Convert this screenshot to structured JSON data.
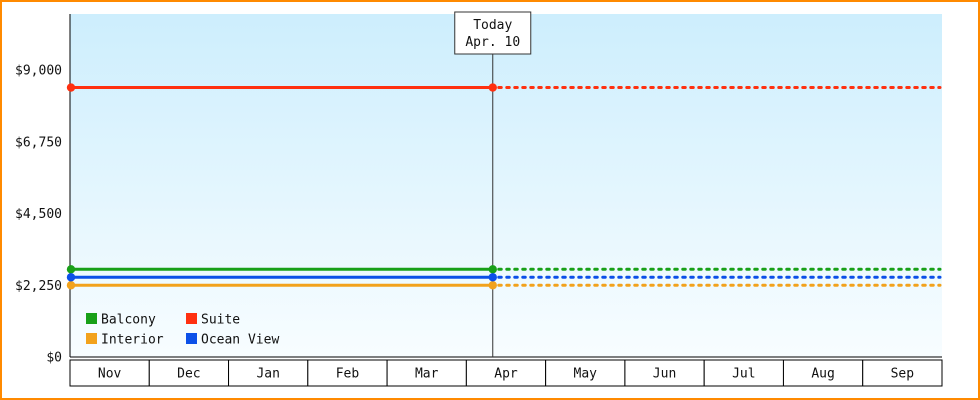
{
  "page": {
    "border_color": "#ff8a00"
  },
  "chart_data": {
    "type": "line",
    "description": "Cabin price trend by category with solid history and dotted forecast after today marker",
    "x_categories": [
      "Nov",
      "Dec",
      "Jan",
      "Feb",
      "Mar",
      "Apr",
      "May",
      "Jun",
      "Jul",
      "Aug",
      "Sep"
    ],
    "y_ticks": [
      {
        "value": 0,
        "label": "$0"
      },
      {
        "value": 2250,
        "label": "$2,250"
      },
      {
        "value": 4500,
        "label": "$4,500"
      },
      {
        "value": 6750,
        "label": "$6,750"
      },
      {
        "value": 9000,
        "label": "$9,000"
      }
    ],
    "ylim": [
      0,
      10750
    ],
    "grid": false,
    "today_marker": {
      "line1": "Today",
      "line2": "Apr. 10",
      "month_index": 5,
      "day_fraction": 0.333
    },
    "series": [
      {
        "name": "Balcony",
        "color": "#18a018",
        "value": 2750
      },
      {
        "name": "Suite",
        "color": "#ff3010",
        "value": 8450
      },
      {
        "name": "Interior",
        "color": "#f2a21c",
        "value": 2250
      },
      {
        "name": "Ocean View",
        "color": "#0c50e8",
        "value": 2500
      }
    ],
    "legend": {
      "position": "bottom-left",
      "rows": [
        [
          "Balcony",
          "Suite"
        ],
        [
          "Interior",
          "Ocean View"
        ]
      ]
    },
    "plot_background": {
      "top": "#cdeefd",
      "bottom": "#f8fdff"
    },
    "line_style": {
      "solid_before_today": true,
      "dotted_after_today": true,
      "markers_at": [
        "start",
        "today"
      ]
    }
  }
}
